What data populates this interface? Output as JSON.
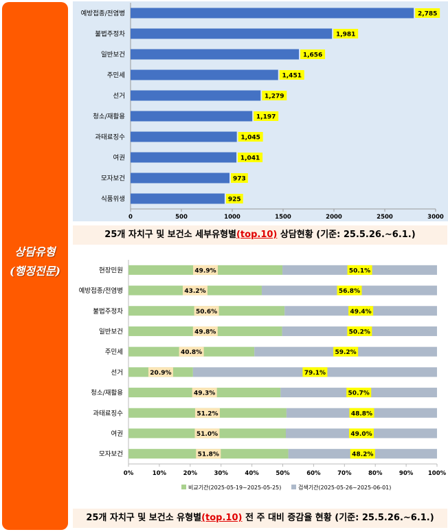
{
  "side_label": {
    "line1": "상담유형",
    "line2": "(행정전문)"
  },
  "chart_data": [
    {
      "type": "bar",
      "orientation": "horizontal",
      "categories": [
        "예방접종/전염병",
        "불법주정차",
        "일반보건",
        "주민세",
        "선거",
        "청소/재활용",
        "과태료징수",
        "여권",
        "모자보건",
        "식품위생"
      ],
      "values": [
        2785,
        1981,
        1656,
        1451,
        1279,
        1197,
        1045,
        1041,
        973,
        925
      ],
      "value_labels": [
        "2,785",
        "1,981",
        "1,656",
        "1,451",
        "1,279",
        "1,197",
        "1,045",
        "1,041",
        "973",
        "925"
      ],
      "xlim": [
        0,
        3000
      ],
      "xticks": [
        "0",
        "500",
        "1000",
        "1500",
        "2000",
        "2500",
        "3000"
      ],
      "grid": false,
      "bar_color": "#4472c4",
      "label_bg": "#ffff00",
      "plot_bg": "#dde9f5"
    },
    {
      "type": "bar",
      "orientation": "horizontal",
      "stacked": "percent",
      "categories": [
        "현장민원",
        "예방접종/전염병",
        "불법주정차",
        "일반보건",
        "주민세",
        "선거",
        "청소/재활용",
        "과태료징수",
        "여권",
        "모자보건"
      ],
      "series": [
        {
          "name": "비교기간(2025-05-19~2025-05-25)",
          "values": [
            49.9,
            43.2,
            50.6,
            49.8,
            40.8,
            20.9,
            49.3,
            51.2,
            51.0,
            51.8
          ],
          "labels": [
            "49.9%",
            "43.2%",
            "50.6%",
            "49.8%",
            "40.8%",
            "20.9%",
            "49.3%",
            "51.2%",
            "51.0%",
            "51.8%"
          ],
          "color": "#a9d18e",
          "label_bg": "#fbe5b6"
        },
        {
          "name": "검색기간(2025-05-26~2025-06-01)",
          "values": [
            50.1,
            56.8,
            49.4,
            50.2,
            59.2,
            79.1,
            50.7,
            48.8,
            49.0,
            48.2
          ],
          "labels": [
            "50.1%",
            "56.8%",
            "49.4%",
            "50.2%",
            "59.2%",
            "79.1%",
            "50.7%",
            "48.8%",
            "49.0%",
            "48.2%"
          ],
          "color": "#adb9ca",
          "label_bg": "#ffff00"
        }
      ],
      "xlim": [
        0,
        100
      ],
      "xticks": [
        "0%",
        "10%",
        "20%",
        "30%",
        "40%",
        "50%",
        "60%",
        "70%",
        "80%",
        "90%",
        "100%"
      ],
      "legend_position": "bottom",
      "grid": false
    }
  ],
  "captions": {
    "c1_a": "25개 자치구 및 보건소 세부유형별",
    "c1_hl": "(top.10)",
    "c1_b": " 상담현황 (기준: 25.5.26.~6.1.)",
    "c2_a": "25개 자치구 및 보건소 유형별",
    "c2_hl": "(top.10)",
    "c2_b": " 전 주 대비 증감율 현황 (기준: 25.5.26.~6.1.)"
  }
}
